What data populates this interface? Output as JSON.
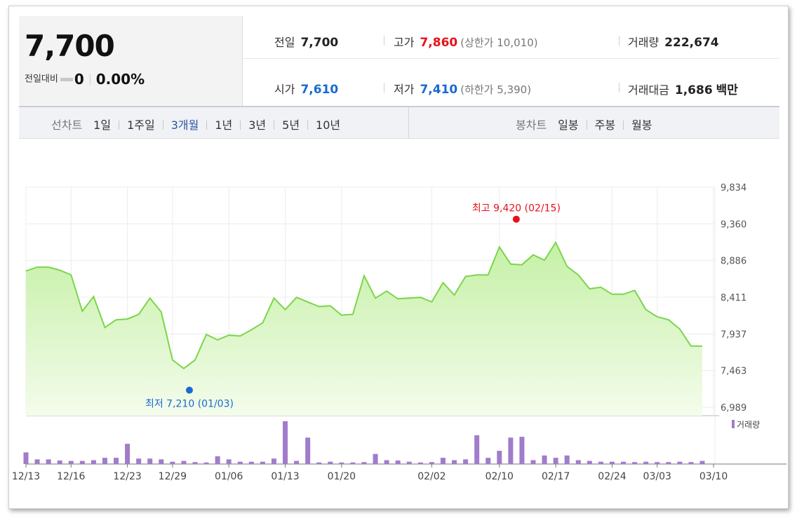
{
  "summary": {
    "price": "7,700",
    "change_label": "전일대비",
    "change_value": "0",
    "change_pct": "0.00%",
    "prev_close_label": "전일",
    "prev_close": "7,700",
    "open_label": "시가",
    "open": "7,610",
    "high_label": "고가",
    "high": "7,860",
    "upper_limit": "(상한가 10,010)",
    "low_label": "저가",
    "low": "7,410",
    "lower_limit": "(하한가 5,390)",
    "volume_label": "거래량",
    "volume": "222,674",
    "amount_label": "거래대금",
    "amount": "1,686",
    "amount_unit": "백만"
  },
  "toolbar": {
    "line_chart_label": "선차트",
    "periods": [
      "1일",
      "1주일",
      "3개월",
      "1년",
      "3년",
      "5년",
      "10년"
    ],
    "active_period": "3개월",
    "candle_chart_label": "봉차트",
    "candle_periods": [
      "일봉",
      "주봉",
      "월봉"
    ]
  },
  "chart_data": {
    "type": "area",
    "y_ticks": [
      "9,834",
      "9,360",
      "8,886",
      "8,411",
      "7,937",
      "7,463",
      "6,989"
    ],
    "ylim": [
      6989,
      9834
    ],
    "x_tick_labels": [
      "12/13",
      "12/16",
      "12/23",
      "12/29",
      "01/06",
      "01/13",
      "01/20",
      "02/02",
      "02/10",
      "02/17",
      "02/24",
      "03/03",
      "03/10"
    ],
    "x_tick_index": [
      0,
      4,
      9,
      13,
      18,
      23,
      28,
      36,
      42,
      47,
      52,
      56,
      61
    ],
    "price": [
      8750,
      8800,
      8800,
      8760,
      8700,
      8230,
      8420,
      8020,
      8120,
      8130,
      8190,
      8400,
      8220,
      7600,
      7490,
      7600,
      7930,
      7860,
      7920,
      7910,
      7990,
      8080,
      8400,
      8250,
      8410,
      8350,
      8290,
      8300,
      8180,
      8190,
      8690,
      8400,
      8490,
      8390,
      8400,
      8410,
      8350,
      8600,
      8440,
      8680,
      8700,
      8700,
      9060,
      8840,
      8830,
      8960,
      8890,
      9120,
      8810,
      8700,
      8520,
      8540,
      8450,
      8450,
      8500,
      8250,
      8160,
      8120,
      8000,
      7780,
      7780
    ],
    "volume": [
      150,
      60,
      60,
      45,
      40,
      40,
      50,
      80,
      80,
      260,
      70,
      70,
      60,
      30,
      40,
      25,
      20,
      100,
      60,
      30,
      30,
      30,
      70,
      550,
      40,
      340,
      20,
      30,
      20,
      20,
      25,
      130,
      50,
      45,
      30,
      20,
      25,
      80,
      50,
      60,
      370,
      80,
      170,
      340,
      350,
      50,
      110,
      80,
      110,
      50,
      40,
      30,
      30,
      30,
      25,
      30,
      25,
      25,
      30,
      25,
      40
    ],
    "max_annotation": "최고 9,420 (02/15)",
    "max_value": 9420,
    "max_index": 43.5,
    "min_annotation": "최저 7,210 (01/03)",
    "min_value": 7210,
    "min_index": 14.5,
    "legend": "거래량",
    "colors": {
      "line": "#7bd64a",
      "fill_top": "#c5f0a6",
      "fill_bottom": "#f4fcec",
      "volume": "#a07ccb",
      "max": "#e8111a",
      "min": "#1a6ad1"
    }
  }
}
